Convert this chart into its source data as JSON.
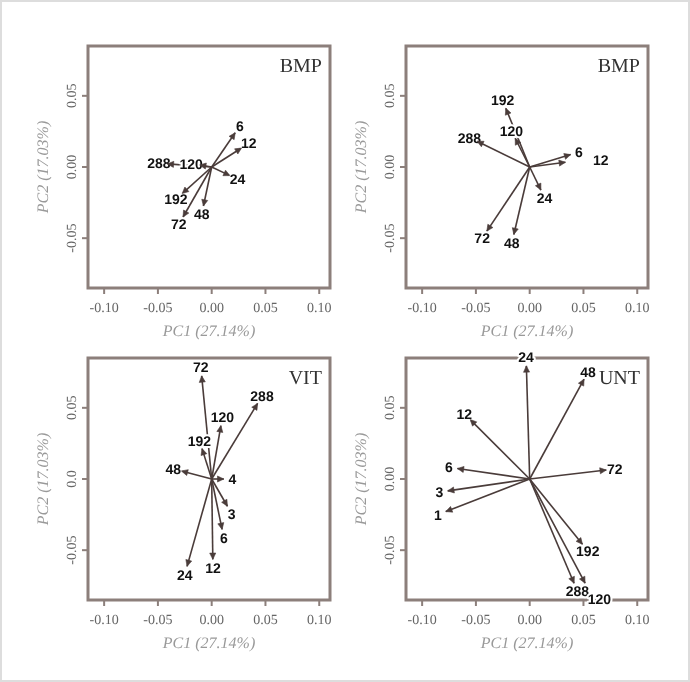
{
  "chart_data": [
    {
      "type": "scatter",
      "title": "BMP",
      "xlabel": "PC1 (27.14%)",
      "ylabel": "PC2 (17.03%)",
      "color": "#4a3c3a",
      "xlim": [
        -0.115,
        0.11
      ],
      "ylim": [
        -0.085,
        0.085
      ],
      "xticks": [
        {
          "value": -0.1,
          "label": "-0.10"
        },
        {
          "value": -0.05,
          "label": "-0.05"
        },
        {
          "value": 0,
          "label": "0.00"
        },
        {
          "value": 0.05,
          "label": "0.05"
        },
        {
          "value": 0.1,
          "label": "0.10"
        }
      ],
      "yticks": [
        {
          "value": -0.05,
          "label": "-0.05"
        },
        {
          "value": 0,
          "label": "0.00"
        },
        {
          "value": 0.05,
          "label": "0.05"
        }
      ],
      "x": [
        0.02,
        0.025,
        -0.038,
        -0.008,
        0.014,
        -0.025,
        -0.025,
        -0.007
      ],
      "values": [
        0.022,
        0.012,
        0.002,
        0.001,
        -0.005,
        -0.017,
        -0.033,
        -0.025
      ],
      "annotations": [
        {
          "text": "6",
          "x": 0.02,
          "y": 0.022
        },
        {
          "text": "12",
          "x": 0.025,
          "y": 0.012
        },
        {
          "text": "288",
          "x": -0.038,
          "y": 0.002
        },
        {
          "text": "120",
          "x": -0.008,
          "y": 0.001
        },
        {
          "text": "24",
          "x": 0.014,
          "y": -0.005
        },
        {
          "text": "192",
          "x": -0.025,
          "y": -0.017
        },
        {
          "text": "72",
          "x": -0.025,
          "y": -0.033
        },
        {
          "text": "48",
          "x": -0.007,
          "y": -0.025
        }
      ]
    },
    {
      "type": "scatter",
      "title": "BMP",
      "xlabel": "PC1 (27.14%)",
      "ylabel": "PC2 (17.03%)",
      "color": "#4a3c3a",
      "xlim": [
        -0.115,
        0.11
      ],
      "ylim": [
        -0.085,
        0.085
      ],
      "xticks": [
        {
          "value": -0.1,
          "label": "-0.10"
        },
        {
          "value": -0.05,
          "label": "-0.05"
        },
        {
          "value": 0,
          "label": "0.00"
        },
        {
          "value": 0.05,
          "label": "0.05"
        },
        {
          "value": 0.1,
          "label": "0.10"
        }
      ],
      "yticks": [
        {
          "value": -0.05,
          "label": "-0.05"
        },
        {
          "value": 0,
          "label": "0.00"
        },
        {
          "value": 0.05,
          "label": "0.05"
        }
      ],
      "x": [
        -0.021,
        -0.012,
        -0.046,
        0.035,
        0.03,
        0.009,
        -0.038,
        -0.014
      ],
      "values": [
        0.039,
        0.018,
        0.017,
        0.008,
        0.003,
        -0.014,
        -0.043,
        -0.045
      ],
      "annotations": [
        {
          "text": "192",
          "x": -0.021,
          "y": 0.039
        },
        {
          "text": "120",
          "x": -0.012,
          "y": 0.018
        },
        {
          "text": "288",
          "x": -0.046,
          "y": 0.017
        },
        {
          "text": "6",
          "x": 0.035,
          "y": 0.008
        },
        {
          "text": "12",
          "x": 0.03,
          "y": 0.003
        },
        {
          "text": "24",
          "x": 0.009,
          "y": -0.014
        },
        {
          "text": "72",
          "x": -0.038,
          "y": -0.043
        },
        {
          "text": "48",
          "x": -0.014,
          "y": -0.045
        }
      ]
    },
    {
      "type": "scatter",
      "title": "VIT",
      "xlabel": "PC1 (27.14%)",
      "ylabel": "PC2 (17.03%)",
      "color": "#4a3c3a",
      "xlim": [
        -0.115,
        0.11
      ],
      "ylim": [
        -0.085,
        0.085
      ],
      "xticks": [
        {
          "value": -0.1,
          "label": "-0.10"
        },
        {
          "value": -0.05,
          "label": "-0.05"
        },
        {
          "value": 0,
          "label": "0.00"
        },
        {
          "value": 0.05,
          "label": "0.05"
        },
        {
          "value": 0.1,
          "label": "0.10"
        }
      ],
      "yticks": [
        {
          "value": -0.05,
          "label": "-0.05"
        },
        {
          "value": 0,
          "label": "0.0"
        },
        {
          "value": 0.05,
          "label": "0.05"
        }
      ],
      "x": [
        -0.009,
        0.041,
        0.008,
        -0.008,
        -0.025,
        0.008,
        0.013,
        0.009,
        0.001,
        -0.022
      ],
      "values": [
        0.07,
        0.051,
        0.035,
        0.019,
        0.005,
        0.0,
        -0.017,
        -0.033,
        -0.054,
        -0.059
      ],
      "annotations": [
        {
          "text": "72",
          "x": -0.009,
          "y": 0.07
        },
        {
          "text": "288",
          "x": 0.041,
          "y": 0.051
        },
        {
          "text": "120",
          "x": 0.008,
          "y": 0.035
        },
        {
          "text": "192",
          "x": -0.008,
          "y": 0.019
        },
        {
          "text": "48",
          "x": -0.025,
          "y": 0.005
        },
        {
          "text": "4",
          "x": 0.008,
          "y": 0.0
        },
        {
          "text": "3",
          "x": 0.013,
          "y": -0.017
        },
        {
          "text": "6",
          "x": 0.009,
          "y": -0.033
        },
        {
          "text": "12",
          "x": 0.001,
          "y": -0.054
        },
        {
          "text": "24",
          "x": -0.022,
          "y": -0.059
        }
      ]
    },
    {
      "type": "scatter",
      "title": "UNT",
      "xlabel": "PC1 (27.14%)",
      "ylabel": "PC2 (17.03%)",
      "color": "#4a3c3a",
      "xlim": [
        -0.115,
        0.11
      ],
      "ylim": [
        -0.085,
        0.085
      ],
      "xticks": [
        {
          "value": -0.1,
          "label": "-0.10"
        },
        {
          "value": -0.05,
          "label": "-0.05"
        },
        {
          "value": 0,
          "label": "0.00"
        },
        {
          "value": 0.05,
          "label": "0.05"
        },
        {
          "value": 0.1,
          "label": "0.10"
        }
      ],
      "yticks": [
        {
          "value": -0.05,
          "label": "-0.05"
        },
        {
          "value": 0,
          "label": "0.00"
        },
        {
          "value": 0.05,
          "label": "0.05"
        }
      ],
      "x": [
        -0.003,
        0.049,
        -0.053,
        -0.064,
        0.068,
        -0.073,
        -0.075,
        0.047,
        0.04,
        0.05
      ],
      "values": [
        0.077,
        0.068,
        0.04,
        0.007,
        0.006,
        -0.008,
        -0.022,
        -0.044,
        -0.071,
        -0.071
      ],
      "annotations": [
        {
          "text": "24",
          "x": -0.003,
          "y": 0.077
        },
        {
          "text": "48",
          "x": 0.049,
          "y": 0.068
        },
        {
          "text": "12",
          "x": -0.053,
          "y": 0.04
        },
        {
          "text": "6",
          "x": -0.064,
          "y": 0.007
        },
        {
          "text": "72",
          "x": 0.068,
          "y": 0.006
        },
        {
          "text": "3",
          "x": -0.073,
          "y": -0.008
        },
        {
          "text": "1",
          "x": -0.075,
          "y": -0.022
        },
        {
          "text": "192",
          "x": 0.047,
          "y": -0.044
        },
        {
          "text": "288",
          "x": 0.04,
          "y": -0.071
        },
        {
          "text": "120",
          "x": 0.05,
          "y": -0.071
        }
      ]
    }
  ]
}
